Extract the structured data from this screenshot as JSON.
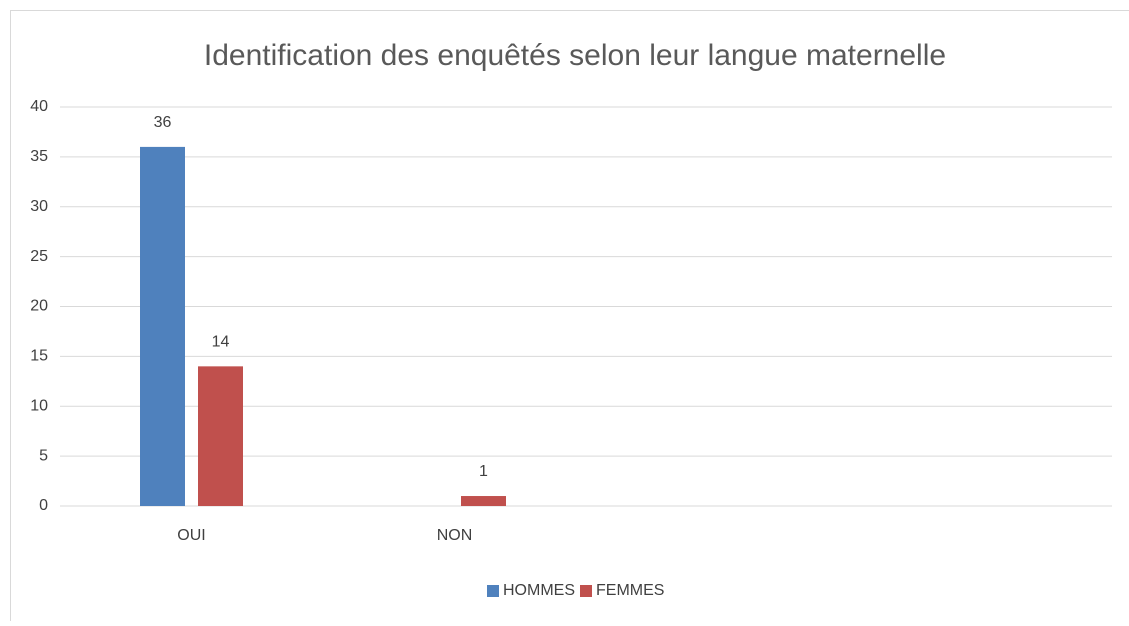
{
  "chart_data": {
    "type": "bar",
    "title": "Identification des enquêtés selon leur langue maternelle",
    "categories": [
      "OUI",
      "NON",
      null,
      null
    ],
    "series": [
      {
        "name": "HOMMES",
        "color": "#4f81bd",
        "values": [
          36,
          null,
          null,
          null
        ]
      },
      {
        "name": "FEMMES",
        "color": "#c0504d",
        "values": [
          14,
          1,
          null,
          null
        ]
      }
    ],
    "ylim": [
      0,
      40
    ],
    "yticks": [
      0,
      5,
      10,
      15,
      20,
      25,
      30,
      35,
      40
    ],
    "grid": true,
    "legend": "bottom",
    "data_labels": true
  }
}
